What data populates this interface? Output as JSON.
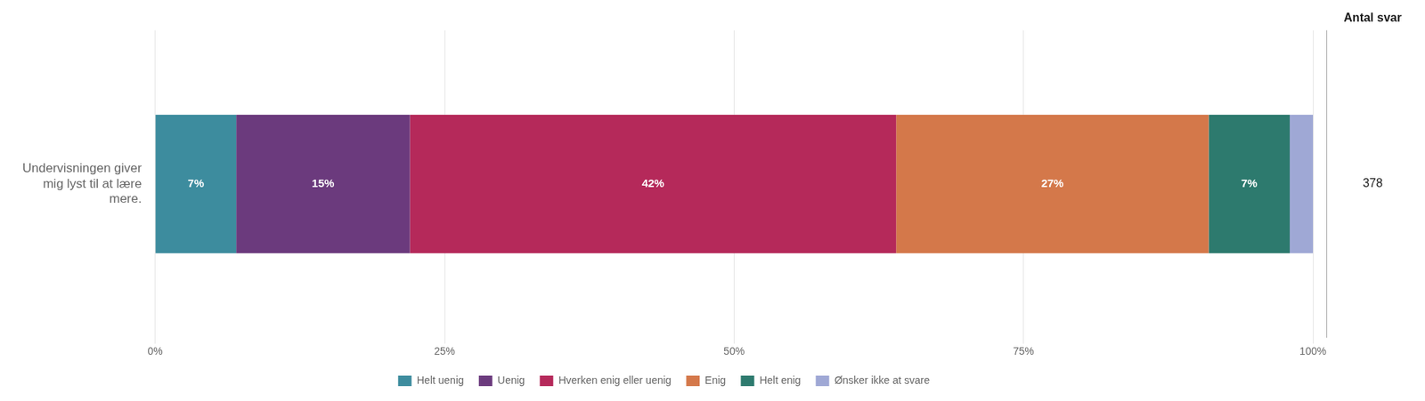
{
  "chart_data": {
    "type": "bar",
    "orientation": "horizontal",
    "stacked": true,
    "categories": [
      "Undervisningen giver\nmig lyst til at lære\nmere."
    ],
    "series": [
      {
        "name": "Helt uenig",
        "color": "#3d8c9e",
        "values": [
          7
        ],
        "value_labels": [
          "7%"
        ]
      },
      {
        "name": "Uenig",
        "color": "#6b3a7d",
        "values": [
          15
        ],
        "value_labels": [
          "15%"
        ]
      },
      {
        "name": "Hverken enig eller uenig",
        "color": "#b5295a",
        "values": [
          42
        ],
        "value_labels": [
          "42%"
        ]
      },
      {
        "name": "Enig",
        "color": "#d4784a",
        "values": [
          27
        ],
        "value_labels": [
          "27%"
        ]
      },
      {
        "name": "Helt enig",
        "color": "#2d7a6e",
        "values": [
          7
        ],
        "value_labels": [
          "7%"
        ]
      },
      {
        "name": "Ønsker ikke at svare",
        "color": "#9fa8d5",
        "values": [
          2
        ],
        "value_labels": [
          null
        ]
      }
    ],
    "xlim": [
      0,
      100
    ],
    "xticks": [
      {
        "value": 0,
        "label": "0%"
      },
      {
        "value": 25,
        "label": "25%"
      },
      {
        "value": 50,
        "label": "50%"
      },
      {
        "value": 75,
        "label": "75%"
      },
      {
        "value": 100,
        "label": "100%"
      }
    ],
    "grid": true,
    "legend": "bottom",
    "data_labels": true,
    "annotations": [
      "Antal svar",
      "378"
    ]
  }
}
